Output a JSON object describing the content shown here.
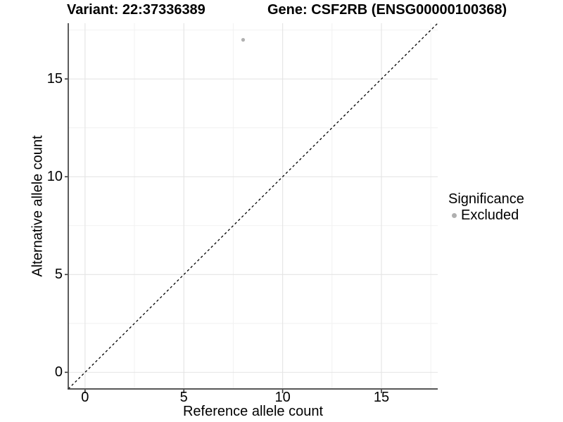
{
  "plot": {
    "title_left": "Variant: 22:37336389",
    "title_right": "Gene: CSF2RB (ENSG00000100368)",
    "x_label": "Reference allele count",
    "y_label": "Alternative allele count"
  },
  "legend": {
    "title": "Significance",
    "entries": [
      {
        "label": "Excluded",
        "color": "#b0b0b0",
        "marker": "circle-icon"
      }
    ]
  },
  "chart_data": {
    "type": "scatter",
    "title": "Variant: 22:37336389 — Gene: CSF2RB (ENSG00000100368)",
    "xlabel": "Reference allele count",
    "ylabel": "Alternative allele count",
    "xlim": [
      -0.85,
      17.85
    ],
    "ylim": [
      -0.85,
      17.85
    ],
    "x_ticks": [
      0,
      5,
      10,
      15
    ],
    "y_ticks": [
      0,
      5,
      10,
      15
    ],
    "x_minor_ticks": [
      2.5,
      7.5,
      12.5,
      17.5
    ],
    "y_minor_ticks": [
      2.5,
      7.5,
      12.5,
      17.5
    ],
    "grid": true,
    "legend_position": "right",
    "series": [
      {
        "name": "Excluded",
        "color": "#b0b0b0",
        "points": [
          {
            "x": 8,
            "y": 17
          }
        ]
      }
    ],
    "reference_line": {
      "equation": "y = x",
      "style": "dashed",
      "color": "#000000"
    },
    "styles": {
      "major_grid": "#e4e4e4",
      "minor_grid": "#f1f1f1",
      "axis_line": "#3f3f3f",
      "tick_color": "#333333",
      "point_radius": 2.6
    }
  }
}
